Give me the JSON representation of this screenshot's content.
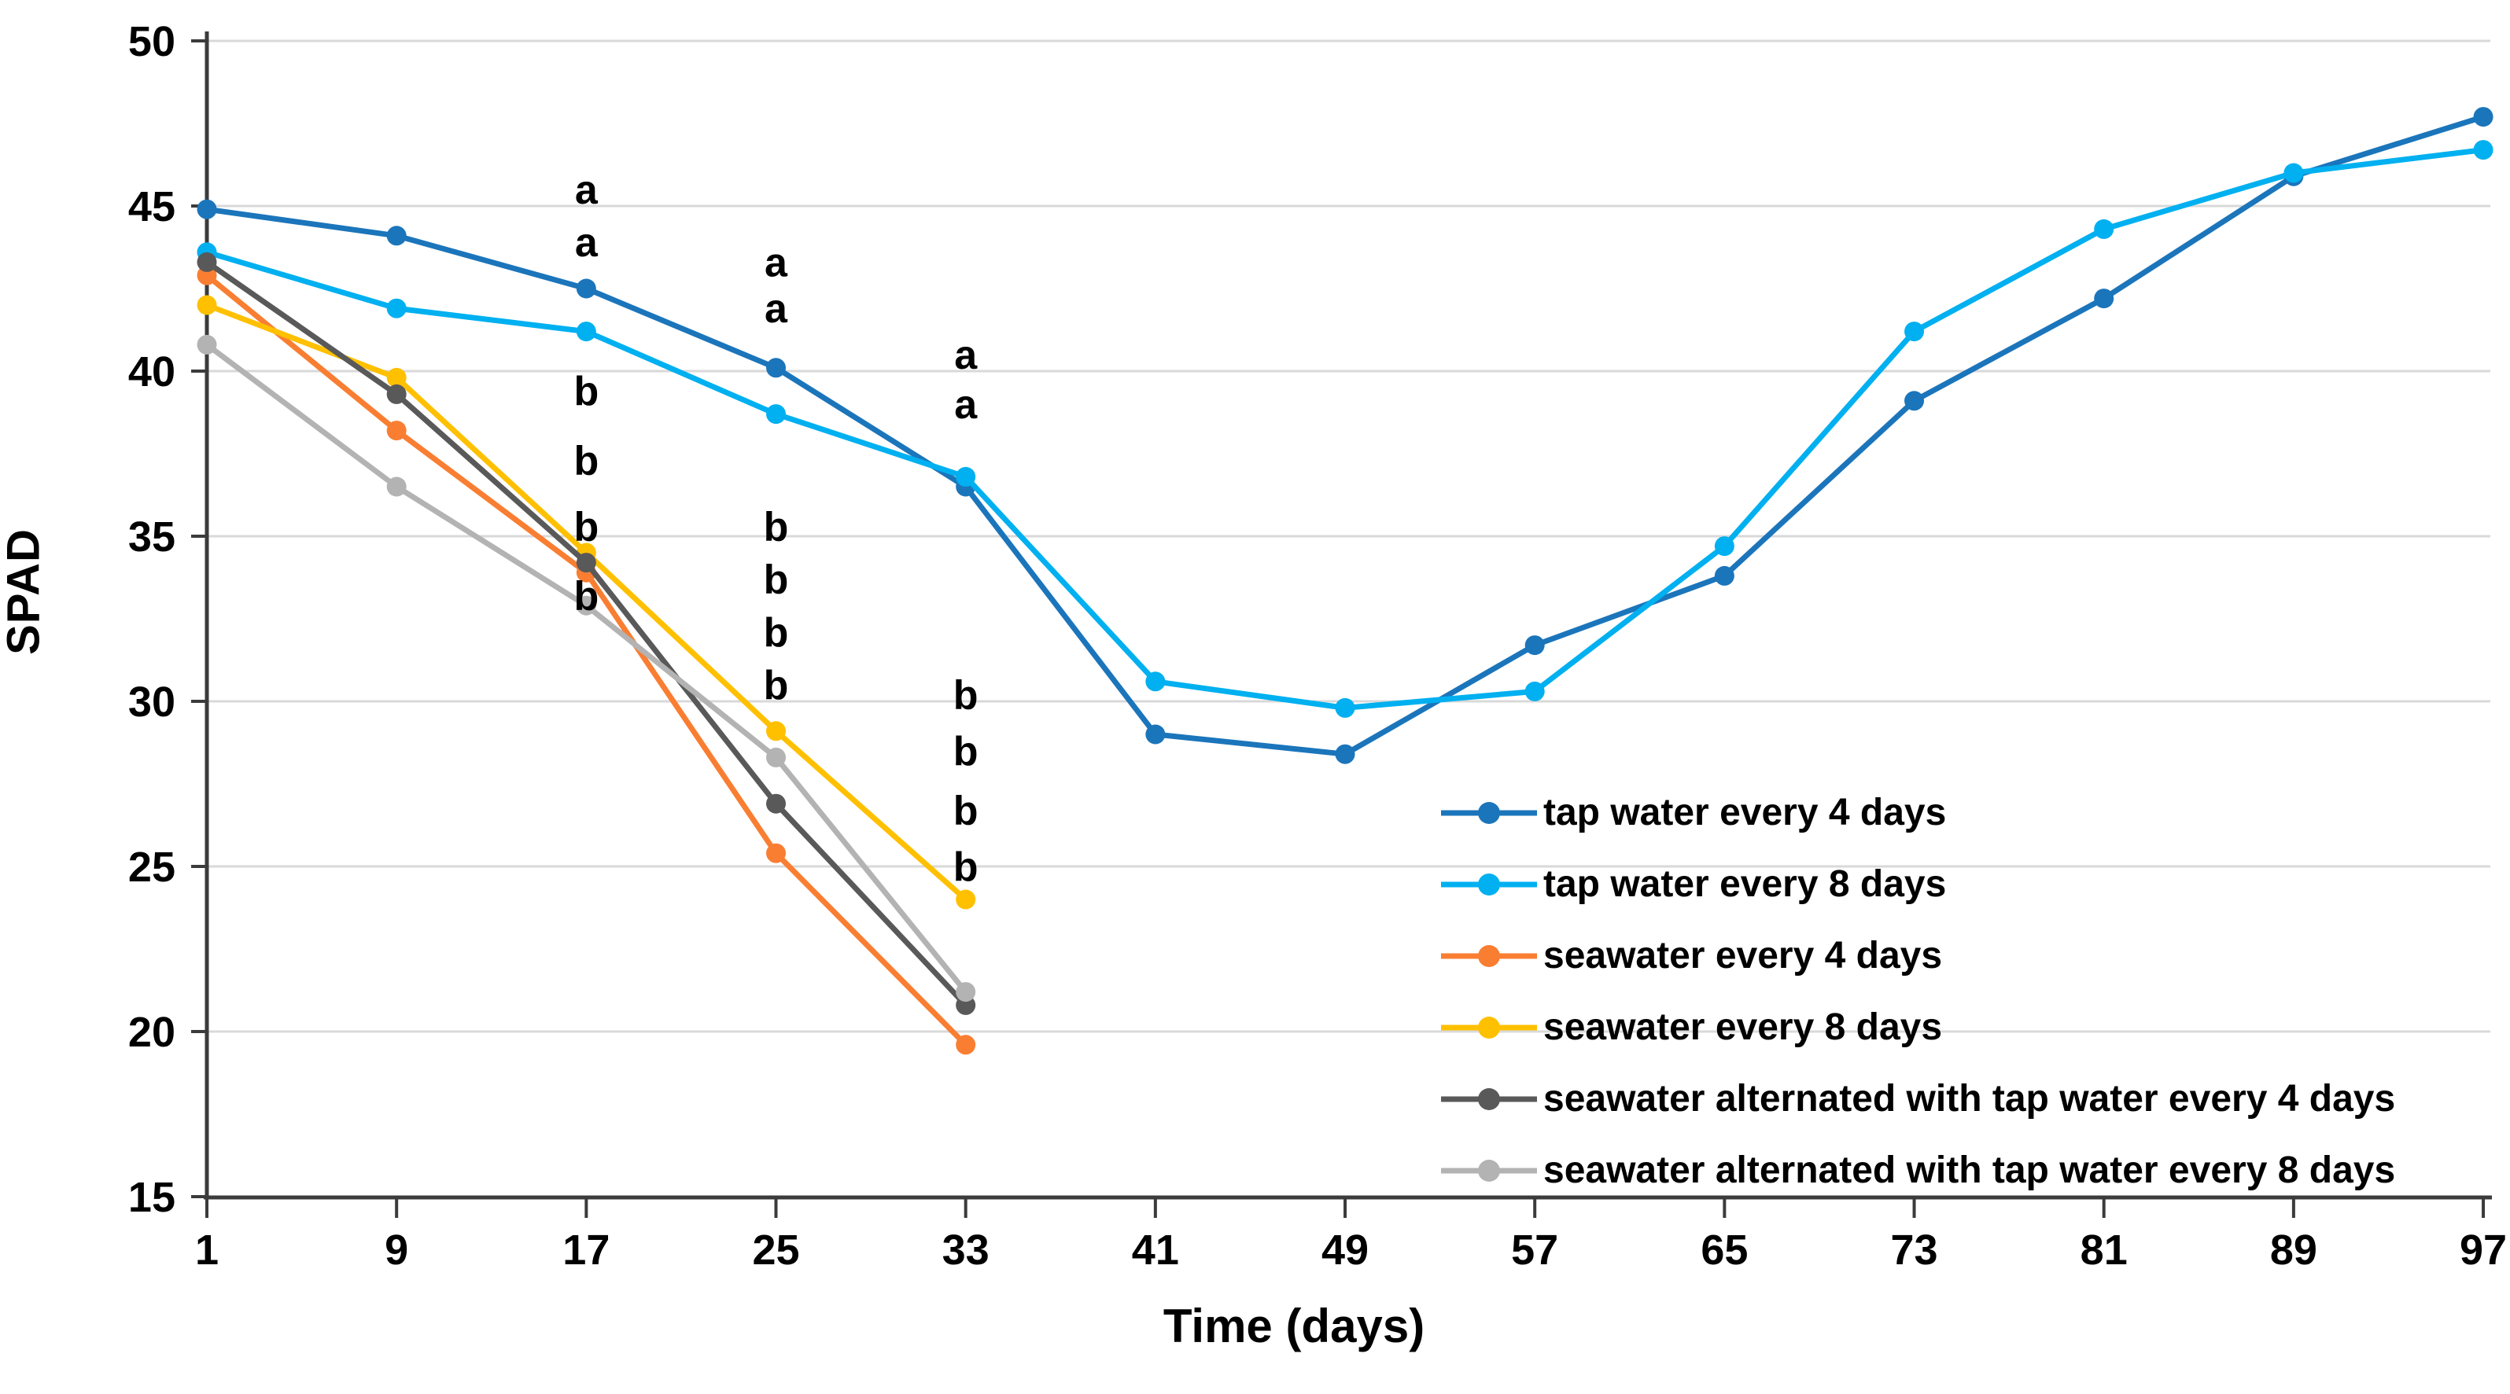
{
  "chart_data": {
    "type": "line",
    "title": "",
    "xlabel": "Time (days)",
    "ylabel": "SPAD",
    "x_categories": [
      "1",
      "9",
      "17",
      "25",
      "33",
      "41",
      "49",
      "57",
      "65",
      "73",
      "81",
      "89",
      "97"
    ],
    "y_ticks": [
      50,
      45,
      40,
      35,
      30,
      25,
      20,
      15
    ],
    "ylim": [
      15,
      50
    ],
    "grid": "horizontal-only",
    "legend_position": "inside-lower-right",
    "series": [
      {
        "name": "tap water every 4 days",
        "color": "#1B75BB",
        "values": [
          44.9,
          44.1,
          42.5,
          40.1,
          36.5,
          29.0,
          28.4,
          31.7,
          33.8,
          39.1,
          42.2,
          45.9,
          47.7
        ]
      },
      {
        "name": "tap water every 8 days",
        "color": "#00B0F0",
        "values": [
          43.6,
          41.9,
          41.2,
          38.7,
          36.8,
          30.6,
          29.8,
          30.3,
          34.7,
          41.2,
          44.3,
          46.0,
          46.7
        ]
      },
      {
        "name": "seawater every 4 days",
        "color": "#F97E32",
        "values": [
          42.9,
          38.2,
          33.9,
          25.4,
          19.6,
          null,
          null,
          null,
          null,
          null,
          null,
          null,
          null
        ]
      },
      {
        "name": "seawater every 8 days",
        "color": "#FFC000",
        "values": [
          42.0,
          39.8,
          34.5,
          29.1,
          24.0,
          null,
          null,
          null,
          null,
          null,
          null,
          null,
          null
        ]
      },
      {
        "name": "seawater alternated with tap water every 4 days",
        "color": "#595959",
        "values": [
          43.3,
          39.3,
          34.2,
          26.9,
          20.8,
          null,
          null,
          null,
          null,
          null,
          null,
          null,
          null
        ]
      },
      {
        "name": "seawater alternated with tap water every 8 days",
        "color": "#B3B3B3",
        "values": [
          40.8,
          36.5,
          32.9,
          28.3,
          21.2,
          null,
          null,
          null,
          null,
          null,
          null,
          null,
          null
        ]
      }
    ],
    "annotations": [
      {
        "x_index": 2,
        "letters": [
          {
            "text": "a",
            "y": 45.5
          },
          {
            "text": "a",
            "y": 43.9
          },
          {
            "text": "b",
            "y": 39.4
          },
          {
            "text": "b",
            "y": 37.3
          },
          {
            "text": "b",
            "y": 35.3
          },
          {
            "text": "b",
            "y": 33.2
          }
        ]
      },
      {
        "x_index": 3,
        "letters": [
          {
            "text": "a",
            "y": 43.3
          },
          {
            "text": "a",
            "y": 41.9
          },
          {
            "text": "b",
            "y": 35.3
          },
          {
            "text": "b",
            "y": 33.7
          },
          {
            "text": "b",
            "y": 32.1
          },
          {
            "text": "b",
            "y": 30.5
          }
        ]
      },
      {
        "x_index": 4,
        "letters": [
          {
            "text": "a",
            "y": 40.5
          },
          {
            "text": "a",
            "y": 39.0
          },
          {
            "text": "b",
            "y": 30.2
          },
          {
            "text": "b",
            "y": 28.5
          },
          {
            "text": "b",
            "y": 26.7
          },
          {
            "text": "b",
            "y": 25.0
          }
        ]
      }
    ]
  },
  "colors": {
    "grid": "#D9D9D9",
    "axis": "#3B3B3B",
    "text": "#000000",
    "background": "#FFFFFF"
  }
}
